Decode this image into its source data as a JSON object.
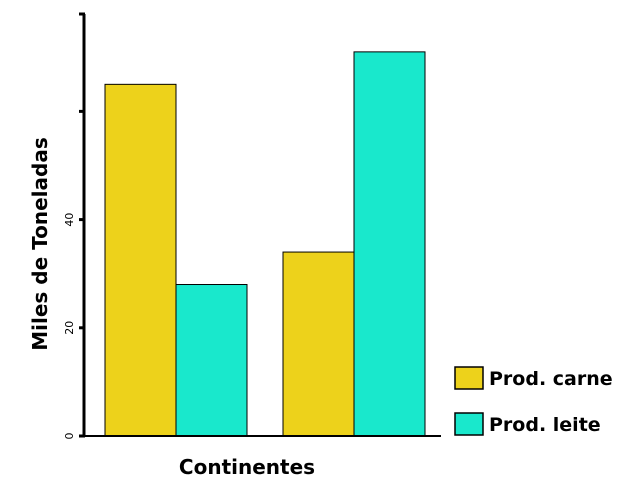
{
  "chart_data": {
    "type": "bar",
    "title": "",
    "xlabel": "Continentes",
    "ylabel": "Miles de Toneladas",
    "categories": [
      "",
      ""
    ],
    "series": [
      {
        "name": "Prod. carne",
        "color": "#EDD21B",
        "values": [
          65,
          34
        ]
      },
      {
        "name": "Prod. leite",
        "color": "#19E8CC",
        "values": [
          28,
          71
        ]
      }
    ],
    "ylim": [
      0,
      78
    ],
    "yticks": [
      {
        "value": 0,
        "label": "0"
      },
      {
        "value": 20,
        "label": "20"
      },
      {
        "value": 40,
        "label": "40"
      },
      {
        "value": 60,
        "label": ""
      }
    ],
    "grid": false,
    "legend": "bottom-right"
  }
}
